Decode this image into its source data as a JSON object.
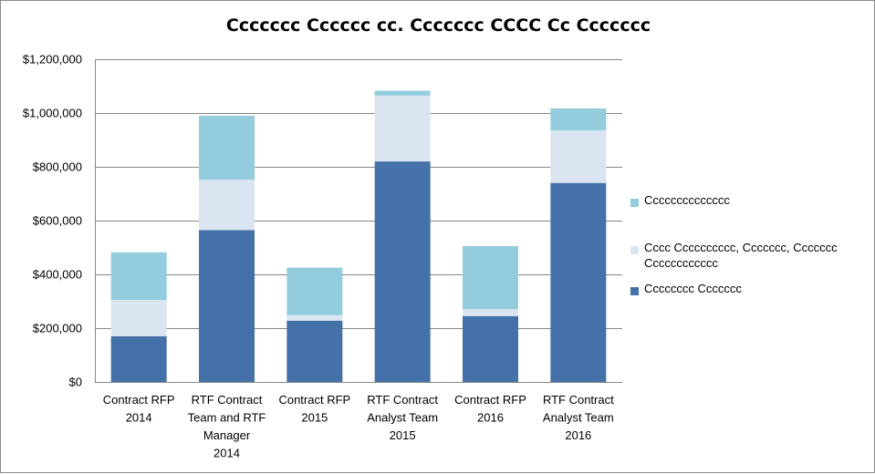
{
  "chart_data": {
    "type": "bar",
    "stacked": true,
    "title": "Ccccccc Cccccc cc. Ccccccc CCCC Cc Ccccccc",
    "categories": [
      [
        "Contract RFP",
        "2014"
      ],
      [
        "RTF Contract",
        "Team and RTF",
        "Manager",
        "2014"
      ],
      [
        "Contract RFP",
        "2015"
      ],
      [
        "RTF Contract",
        "Analyst Team",
        "2015"
      ],
      [
        "Contract RFP",
        "2016"
      ],
      [
        "RTF Contract",
        "Analyst Team",
        "2016"
      ]
    ],
    "series": [
      {
        "name": "Cccccccc Ccccccc",
        "color": "#4472a8",
        "values": [
          170000,
          565000,
          228000,
          820000,
          245000,
          740000
        ]
      },
      {
        "name": "Cccc Cccccccccc, Ccccccc, Ccccccc Cccccccccccc",
        "color": "#dbe5f1",
        "values": [
          135000,
          187000,
          20000,
          245000,
          25000,
          195000
        ]
      },
      {
        "name": "Cccccccccccccc",
        "color": "#93cddd",
        "values": [
          177000,
          238000,
          177000,
          18000,
          235000,
          82000
        ]
      }
    ],
    "legend_order": [
      2,
      1,
      0
    ],
    "ylim": [
      0,
      1200000
    ],
    "yticks": [
      0,
      200000,
      400000,
      600000,
      800000,
      1000000,
      1200000
    ],
    "ytick_labels": [
      "$0",
      "$200,000",
      "$400,000",
      "$600,000",
      "$800,000",
      "$1,000,000",
      "$1,200,000"
    ],
    "grid": true,
    "legend_position": "right"
  }
}
